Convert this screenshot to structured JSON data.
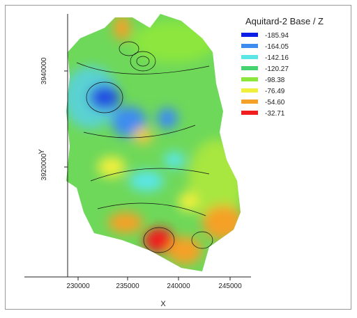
{
  "legend": {
    "title": "Aquitard-2 Base / Z",
    "entries": [
      {
        "label": "-185.94",
        "color": "#0a1ee6"
      },
      {
        "label": "-164.05",
        "color": "#3c8cf0"
      },
      {
        "label": "-142.16",
        "color": "#5ae6e6"
      },
      {
        "label": "-120.27",
        "color": "#46d26e"
      },
      {
        "label": "-98.38",
        "color": "#8ce63c"
      },
      {
        "label": "-76.49",
        "color": "#f0f03c"
      },
      {
        "label": "-54.60",
        "color": "#f5a028"
      },
      {
        "label": "-32.71",
        "color": "#f01e1e"
      }
    ]
  },
  "x_axis": {
    "label": "X",
    "ticks": [
      "230000",
      "235000",
      "240000",
      "245000"
    ]
  },
  "y_axis": {
    "label": "Y",
    "ticks": [
      "3940000",
      "3920000"
    ]
  }
}
